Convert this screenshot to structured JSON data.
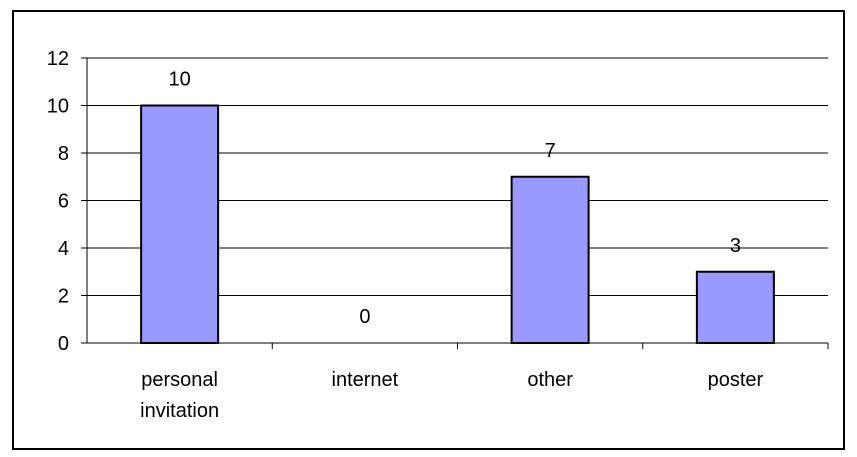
{
  "chart_data": {
    "type": "bar",
    "categories": [
      [
        "personal",
        "invitation"
      ],
      [
        "internet"
      ],
      [
        "other"
      ],
      [
        "poster"
      ]
    ],
    "values": [
      10,
      0,
      7,
      3
    ],
    "data_labels": [
      "10",
      "0",
      "7",
      "3"
    ],
    "y_ticks": [
      "0",
      "2",
      "4",
      "6",
      "8",
      "10",
      "12"
    ],
    "ylim": [
      0,
      12
    ],
    "grid": true,
    "legend": "none",
    "colors": {
      "bar_fill": "#9999ff",
      "bar_stroke": "#000000",
      "grid": "#000000",
      "frame": "#000000",
      "background": "#ffffff"
    }
  }
}
